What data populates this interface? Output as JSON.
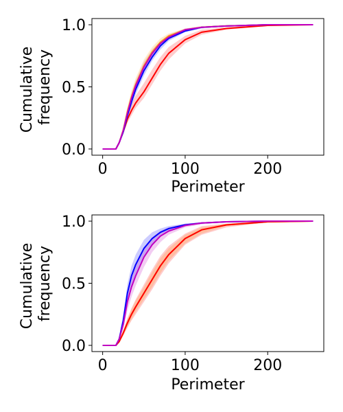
{
  "chart_data": [
    {
      "type": "line",
      "xlabel": "Perimeter",
      "ylabel": [
        "Cumulative",
        "frequency"
      ],
      "xlim": [
        -13,
        268
      ],
      "ylim": [
        -0.05,
        1.05
      ],
      "xticks": [
        0,
        100,
        200
      ],
      "yticks": [
        0.0,
        0.5,
        1.0
      ],
      "ytick_labels": [
        "0.0",
        "0.5",
        "1.0"
      ],
      "grid": false,
      "series": [
        {
          "color": "#FFA500",
          "x": [
            0,
            16,
            20,
            25,
            30,
            35,
            40,
            50,
            60,
            70,
            80,
            100,
            120,
            150,
            200,
            255
          ],
          "values": [
            0,
            0,
            0.05,
            0.15,
            0.3,
            0.42,
            0.52,
            0.67,
            0.78,
            0.86,
            0.91,
            0.96,
            0.98,
            0.99,
            1.0,
            1.0
          ],
          "band_low": [
            0,
            0,
            0.04,
            0.12,
            0.26,
            0.38,
            0.48,
            0.64,
            0.75,
            0.84,
            0.89,
            0.95,
            0.975,
            0.99,
            1.0,
            1.0
          ],
          "band_high": [
            0,
            0,
            0.07,
            0.19,
            0.34,
            0.47,
            0.57,
            0.72,
            0.82,
            0.89,
            0.93,
            0.97,
            0.99,
            1.0,
            1.0,
            1.0
          ]
        },
        {
          "color": "#FF0000",
          "x": [
            0,
            16,
            20,
            25,
            30,
            35,
            40,
            50,
            60,
            70,
            80,
            100,
            120,
            150,
            200,
            255
          ],
          "values": [
            0,
            0,
            0.05,
            0.14,
            0.24,
            0.31,
            0.37,
            0.46,
            0.57,
            0.68,
            0.77,
            0.88,
            0.94,
            0.97,
            0.995,
            1.0
          ],
          "band_low": [
            0,
            0,
            0.04,
            0.12,
            0.21,
            0.27,
            0.33,
            0.41,
            0.52,
            0.63,
            0.72,
            0.85,
            0.92,
            0.96,
            0.99,
            1.0
          ],
          "band_high": [
            0,
            0,
            0.06,
            0.17,
            0.28,
            0.36,
            0.43,
            0.53,
            0.64,
            0.74,
            0.82,
            0.91,
            0.96,
            0.98,
            1.0,
            1.0
          ]
        },
        {
          "color": "#0000FF",
          "x": [
            0,
            16,
            20,
            25,
            30,
            35,
            40,
            50,
            60,
            70,
            80,
            100,
            120,
            150,
            200,
            255
          ],
          "values": [
            0,
            0,
            0.05,
            0.14,
            0.27,
            0.38,
            0.48,
            0.63,
            0.74,
            0.83,
            0.89,
            0.95,
            0.98,
            0.99,
            1.0,
            1.0
          ],
          "band_low": [
            0,
            0,
            0.04,
            0.12,
            0.24,
            0.34,
            0.44,
            0.59,
            0.71,
            0.8,
            0.87,
            0.94,
            0.97,
            0.99,
            1.0,
            1.0
          ],
          "band_high": [
            0,
            0,
            0.06,
            0.16,
            0.3,
            0.42,
            0.52,
            0.67,
            0.77,
            0.85,
            0.91,
            0.96,
            0.985,
            0.995,
            1.0,
            1.0
          ]
        },
        {
          "color": "#C000C0",
          "x": [
            0,
            16,
            20,
            25,
            30,
            35,
            40,
            50,
            60,
            70,
            80,
            100,
            120,
            150,
            200,
            255
          ],
          "values": [
            0,
            0,
            0.05,
            0.15,
            0.29,
            0.41,
            0.51,
            0.66,
            0.77,
            0.85,
            0.9,
            0.96,
            0.98,
            0.99,
            1.0,
            1.0
          ],
          "band_low": [
            0,
            0,
            0.04,
            0.13,
            0.26,
            0.37,
            0.47,
            0.62,
            0.74,
            0.83,
            0.88,
            0.95,
            0.975,
            0.99,
            1.0,
            1.0
          ],
          "band_high": [
            0,
            0,
            0.06,
            0.17,
            0.32,
            0.45,
            0.55,
            0.7,
            0.8,
            0.87,
            0.92,
            0.97,
            0.985,
            0.995,
            1.0,
            1.0
          ]
        }
      ]
    },
    {
      "type": "line",
      "xlabel": "Perimeter",
      "ylabel": [
        "Cumulative",
        "frequency"
      ],
      "xlim": [
        -13,
        268
      ],
      "ylim": [
        -0.05,
        1.05
      ],
      "xticks": [
        0,
        100,
        200
      ],
      "yticks": [
        0.0,
        0.5,
        1.0
      ],
      "ytick_labels": [
        "0.0",
        "0.5",
        "1.0"
      ],
      "grid": false,
      "series": [
        {
          "color": "#FFA500",
          "x": [
            0,
            16,
            20,
            25,
            30,
            35,
            40,
            50,
            60,
            70,
            80,
            100,
            120,
            150,
            200,
            255
          ],
          "values": [
            0,
            0,
            0.03,
            0.1,
            0.18,
            0.25,
            0.31,
            0.42,
            0.53,
            0.64,
            0.73,
            0.86,
            0.93,
            0.97,
            0.995,
            1.0
          ],
          "band_low": [
            0,
            0,
            0.02,
            0.08,
            0.15,
            0.21,
            0.27,
            0.37,
            0.47,
            0.58,
            0.68,
            0.82,
            0.9,
            0.96,
            0.99,
            1.0
          ],
          "band_high": [
            0,
            0,
            0.04,
            0.12,
            0.21,
            0.29,
            0.36,
            0.47,
            0.59,
            0.7,
            0.78,
            0.89,
            0.95,
            0.98,
            1.0,
            1.0
          ]
        },
        {
          "color": "#FF0000",
          "x": [
            0,
            16,
            20,
            25,
            30,
            35,
            40,
            50,
            60,
            70,
            80,
            100,
            120,
            150,
            200,
            255
          ],
          "values": [
            0,
            0,
            0.03,
            0.1,
            0.18,
            0.25,
            0.31,
            0.42,
            0.53,
            0.64,
            0.73,
            0.86,
            0.93,
            0.97,
            0.995,
            1.0
          ],
          "band_low": [
            0,
            0,
            0.02,
            0.08,
            0.14,
            0.2,
            0.25,
            0.35,
            0.45,
            0.56,
            0.66,
            0.81,
            0.89,
            0.95,
            0.99,
            1.0
          ],
          "band_high": [
            0,
            0,
            0.04,
            0.12,
            0.22,
            0.3,
            0.37,
            0.49,
            0.61,
            0.72,
            0.8,
            0.9,
            0.96,
            0.98,
            1.0,
            1.0
          ]
        },
        {
          "color": "#0000FF",
          "x": [
            0,
            16,
            20,
            25,
            30,
            35,
            40,
            50,
            60,
            70,
            80,
            100,
            120,
            150,
            200,
            255
          ],
          "values": [
            0,
            0,
            0.05,
            0.2,
            0.42,
            0.56,
            0.65,
            0.78,
            0.86,
            0.91,
            0.94,
            0.97,
            0.985,
            0.995,
            1.0,
            1.0
          ],
          "band_low": [
            0,
            0,
            0.04,
            0.16,
            0.35,
            0.48,
            0.57,
            0.71,
            0.81,
            0.88,
            0.92,
            0.96,
            0.98,
            0.99,
            1.0,
            1.0
          ],
          "band_high": [
            0,
            0,
            0.07,
            0.25,
            0.49,
            0.64,
            0.73,
            0.85,
            0.91,
            0.94,
            0.96,
            0.98,
            0.99,
            1.0,
            1.0,
            1.0
          ]
        },
        {
          "color": "#C000C0",
          "x": [
            0,
            16,
            20,
            25,
            30,
            35,
            40,
            50,
            60,
            70,
            80,
            100,
            120,
            150,
            200,
            255
          ],
          "values": [
            0,
            0,
            0.05,
            0.17,
            0.35,
            0.47,
            0.56,
            0.71,
            0.81,
            0.88,
            0.92,
            0.965,
            0.985,
            0.995,
            1.0,
            1.0
          ],
          "band_low": [
            0,
            0,
            0.04,
            0.13,
            0.28,
            0.39,
            0.48,
            0.63,
            0.75,
            0.83,
            0.89,
            0.95,
            0.975,
            0.99,
            1.0,
            1.0
          ],
          "band_high": [
            0,
            0,
            0.07,
            0.22,
            0.42,
            0.55,
            0.64,
            0.78,
            0.87,
            0.92,
            0.95,
            0.98,
            0.99,
            1.0,
            1.0,
            1.0
          ]
        }
      ]
    }
  ]
}
